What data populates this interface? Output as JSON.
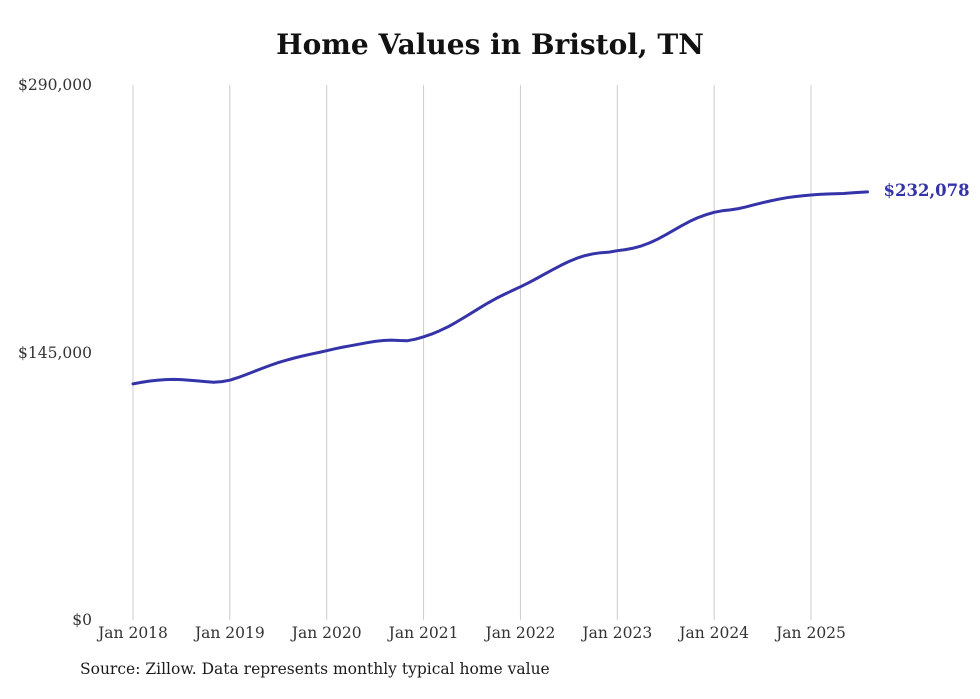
{
  "chart_data": {
    "type": "line",
    "title": "Home Values in Bristol, TN",
    "xlabel": "",
    "ylabel": "",
    "ylim": [
      0,
      290000
    ],
    "grid": "vertical",
    "legend": "none",
    "line_color": "#3533a8",
    "grid_color": "#cccccc",
    "end_label": "$232,078",
    "end_value": 232078,
    "source_note": "Source: Zillow. Data represents monthly typical home value",
    "x_start": "2018-01",
    "x_end": "2025-08",
    "x_frequency": "monthly",
    "y_ticks": [
      {
        "label": "$290,000",
        "value": 290000
      },
      {
        "label": "$145,000",
        "value": 145000
      },
      {
        "label": "$0",
        "value": 0
      }
    ],
    "x_ticks": [
      {
        "label": "Jan 2018",
        "month": 0
      },
      {
        "label": "Jan 2019",
        "month": 12
      },
      {
        "label": "Jan 2020",
        "month": 24
      },
      {
        "label": "Jan 2021",
        "month": 36
      },
      {
        "label": "Jan 2022",
        "month": 48
      },
      {
        "label": "Jan 2023",
        "month": 60
      },
      {
        "label": "Jan 2024",
        "month": 72
      },
      {
        "label": "Jan 2025",
        "month": 84
      }
    ],
    "series": [
      {
        "name": "Typical home value (monthly)",
        "values": [
          128000,
          128800,
          129500,
          130000,
          130300,
          130400,
          130300,
          130000,
          129600,
          129200,
          128900,
          129200,
          130000,
          131400,
          133000,
          134700,
          136400,
          138000,
          139500,
          140800,
          142000,
          143100,
          144100,
          145000,
          146000,
          147000,
          147900,
          148700,
          149500,
          150300,
          151000,
          151500,
          151700,
          151500,
          151400,
          152200,
          153500,
          155000,
          156800,
          158900,
          161300,
          163900,
          166600,
          169300,
          171900,
          174300,
          176500,
          178600,
          180600,
          182800,
          185100,
          187500,
          189900,
          192200,
          194300,
          196100,
          197500,
          198500,
          199100,
          199400,
          200200,
          200800,
          201600,
          202800,
          204400,
          206400,
          208800,
          211300,
          213800,
          216100,
          218100,
          219700,
          221000,
          221800,
          222300,
          223000,
          224000,
          225100,
          226200,
          227200,
          228100,
          228900,
          229500,
          230000,
          230400,
          230700,
          230900,
          231000,
          231200,
          231500,
          231800,
          232078
        ]
      }
    ]
  }
}
